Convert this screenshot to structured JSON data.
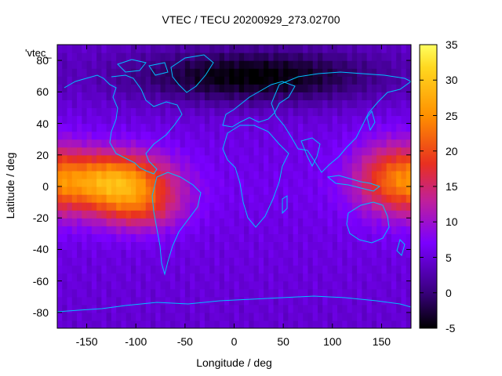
{
  "chart_data": {
    "type": "heatmap",
    "title": "VTEC / TECU 20200929_273.02700",
    "xlabel": "Longitude / deg",
    "ylabel": "Latitude / deg",
    "series_label": "'vtec_",
    "xlim": [
      -180,
      180
    ],
    "ylim": [
      -90,
      90
    ],
    "x_ticks": [
      -150,
      -100,
      -50,
      0,
      50,
      100,
      150
    ],
    "y_ticks": [
      -80,
      -60,
      -40,
      -20,
      0,
      20,
      40,
      60,
      80
    ],
    "colorbar": {
      "range": [
        -5,
        35
      ],
      "ticks": [
        -5,
        0,
        5,
        10,
        15,
        20,
        25,
        30,
        35
      ],
      "palette": [
        "#000000",
        "#3a0080",
        "#7a00ff",
        "#c0209a",
        "#e83020",
        "#ff9000",
        "#ffd820",
        "#ffff60"
      ]
    },
    "grid_step_deg": 5,
    "background_tec": 6,
    "regions": [
      {
        "name": "equatorial-anomaly-pacific-east",
        "lon": -120,
        "lat": 3,
        "peak": 28,
        "lon_spread": 38,
        "lat_spread": 13
      },
      {
        "name": "south-pacific-extension",
        "lon": -95,
        "lat": -15,
        "peak": 14,
        "lon_spread": 30,
        "lat_spread": 10
      },
      {
        "name": "equatorial-anomaly-western-pacific",
        "lon": 165,
        "lat": 5,
        "peak": 21,
        "lon_spread": 30,
        "lat_spread": 16
      },
      {
        "name": "polar-cap-low",
        "lon": 20,
        "lat": 70,
        "peak": -4,
        "lon_spread": 90,
        "lat_spread": 12
      }
    ],
    "coastline_color": "#00c0ff"
  }
}
